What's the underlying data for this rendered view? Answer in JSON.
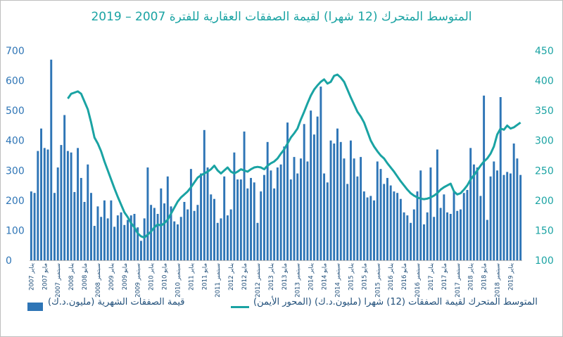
{
  "chart_data": {
    "type": "bar",
    "title": "المتوسط المتحرك (12 شهرا) لقيمة الصفقات العقارية للفترة 2007 – 2019",
    "left_axis": {
      "ticks": [
        "0",
        "100",
        "200",
        "300",
        "400",
        "500",
        "600",
        "700"
      ],
      "ylim": [
        0,
        700
      ],
      "color": "#2e75b6"
    },
    "right_axis": {
      "ticks": [
        "100",
        "150",
        "200",
        "250",
        "300",
        "350",
        "400",
        "450"
      ],
      "ylim": [
        100,
        450
      ],
      "color": "#1aa3a3"
    },
    "x_start_year": 2007,
    "x_end_year": 2019,
    "month_labels": [
      "يناير",
      "مايو",
      "سبتمبر"
    ],
    "x_tick_labels": [
      "يناير 2007",
      "مايو 2007",
      "سبتمبر 2007",
      "يناير 2008",
      "مايو 2008",
      "سبتمبر 2008",
      "يناير 2009",
      "مايو 2009",
      "سبتمبر 2009",
      "يناير 2010",
      "مايو 2010",
      "سبتمبر 2010",
      "يناير 2011",
      "مايو 2011",
      "سبتمبر 2011",
      "يناير 2012",
      "مايو 2012",
      "سبتمبر 2012",
      "يناير 2013",
      "مايو 2013",
      "سبتمبر 2013",
      "يناير 2014",
      "مايو 2014",
      "سبتمبر 2014",
      "يناير 2015",
      "مايو 2015",
      "سبتمبر 2015",
      "يناير 2016",
      "مايو 2016",
      "سبتمبر 2016",
      "يناير 2017",
      "مايو 2017",
      "سبتمبر 2017",
      "يناير 2018",
      "مايو 2018",
      "سبتمبر 2018",
      "يناير 2019",
      "مايو 2019",
      "سبتمبر 2019"
    ],
    "series": [
      {
        "name": "قيمة الصفقات الشهرية (مليون.د.ك)",
        "type": "bar",
        "axis": "left",
        "color": "#2e75b6",
        "values": [
          230,
          225,
          365,
          440,
          375,
          370,
          670,
          225,
          310,
          385,
          485,
          365,
          360,
          228,
          375,
          275,
          195,
          320,
          225,
          115,
          180,
          145,
          200,
          140,
          200,
          112,
          150,
          160,
          118,
          135,
          150,
          155,
          110,
          65,
          140,
          310,
          185,
          175,
          155,
          240,
          190,
          280,
          180,
          130,
          120,
          145,
          195,
          170,
          305,
          165,
          185,
          290,
          435,
          310,
          220,
          205,
          125,
          140,
          280,
          150,
          170,
          360,
          270,
          270,
          430,
          240,
          275,
          260,
          125,
          230,
          285,
          395,
          300,
          240,
          310,
          320,
          380,
          460,
          270,
          345,
          290,
          340,
          455,
          330,
          500,
          420,
          480,
          580,
          290,
          260,
          400,
          390,
          440,
          395,
          340,
          255,
          400,
          340,
          280,
          345,
          230,
          210,
          215,
          200,
          330,
          305,
          255,
          275,
          250,
          230,
          225,
          205,
          160,
          150,
          125,
          170,
          230,
          300,
          120,
          160,
          310,
          145,
          370,
          175,
          220,
          160,
          155,
          230,
          165,
          170,
          225,
          235,
          375,
          320,
          310,
          215,
          550,
          135,
          280,
          330,
          300,
          545,
          285,
          295,
          290,
          390,
          340,
          285
        ]
      },
      {
        "name": "المتوسط المتحرك لقيمة الصفقات (12) شهرا (مليون.د.ك) (المحور الأيمن)",
        "type": "line",
        "axis": "right",
        "color": "#1aa3a3",
        "values": [
          null,
          null,
          null,
          null,
          null,
          null,
          null,
          null,
          null,
          null,
          null,
          370,
          378,
          380,
          382,
          378,
          365,
          352,
          330,
          305,
          295,
          282,
          265,
          250,
          235,
          220,
          206,
          193,
          180,
          172,
          162,
          155,
          145,
          140,
          138,
          143,
          148,
          155,
          160,
          158,
          162,
          168,
          178,
          188,
          198,
          205,
          210,
          215,
          222,
          230,
          238,
          242,
          245,
          248,
          252,
          258,
          250,
          245,
          250,
          255,
          248,
          245,
          248,
          252,
          250,
          248,
          252,
          255,
          256,
          255,
          252,
          258,
          262,
          265,
          270,
          278,
          285,
          295,
          305,
          312,
          320,
          335,
          348,
          362,
          375,
          385,
          392,
          398,
          402,
          395,
          398,
          408,
          410,
          405,
          398,
          385,
          372,
          360,
          348,
          340,
          330,
          315,
          300,
          290,
          282,
          275,
          270,
          262,
          255,
          248,
          240,
          232,
          225,
          218,
          212,
          208,
          205,
          203,
          202,
          203,
          205,
          208,
          212,
          218,
          222,
          225,
          228,
          215,
          210,
          212,
          218,
          225,
          235,
          242,
          250,
          258,
          265,
          270,
          278,
          290,
          310,
          320,
          318,
          325,
          320,
          322,
          326,
          330
        ]
      }
    ]
  },
  "legend": {
    "bar_label": "قيمة الصفقات الشهرية (مليون.د.ك)",
    "line_label": "المتوسط المتحرك لقيمة الصفقات (12) شهرا (مليون.د.ك) (المحور الأيمن)"
  }
}
